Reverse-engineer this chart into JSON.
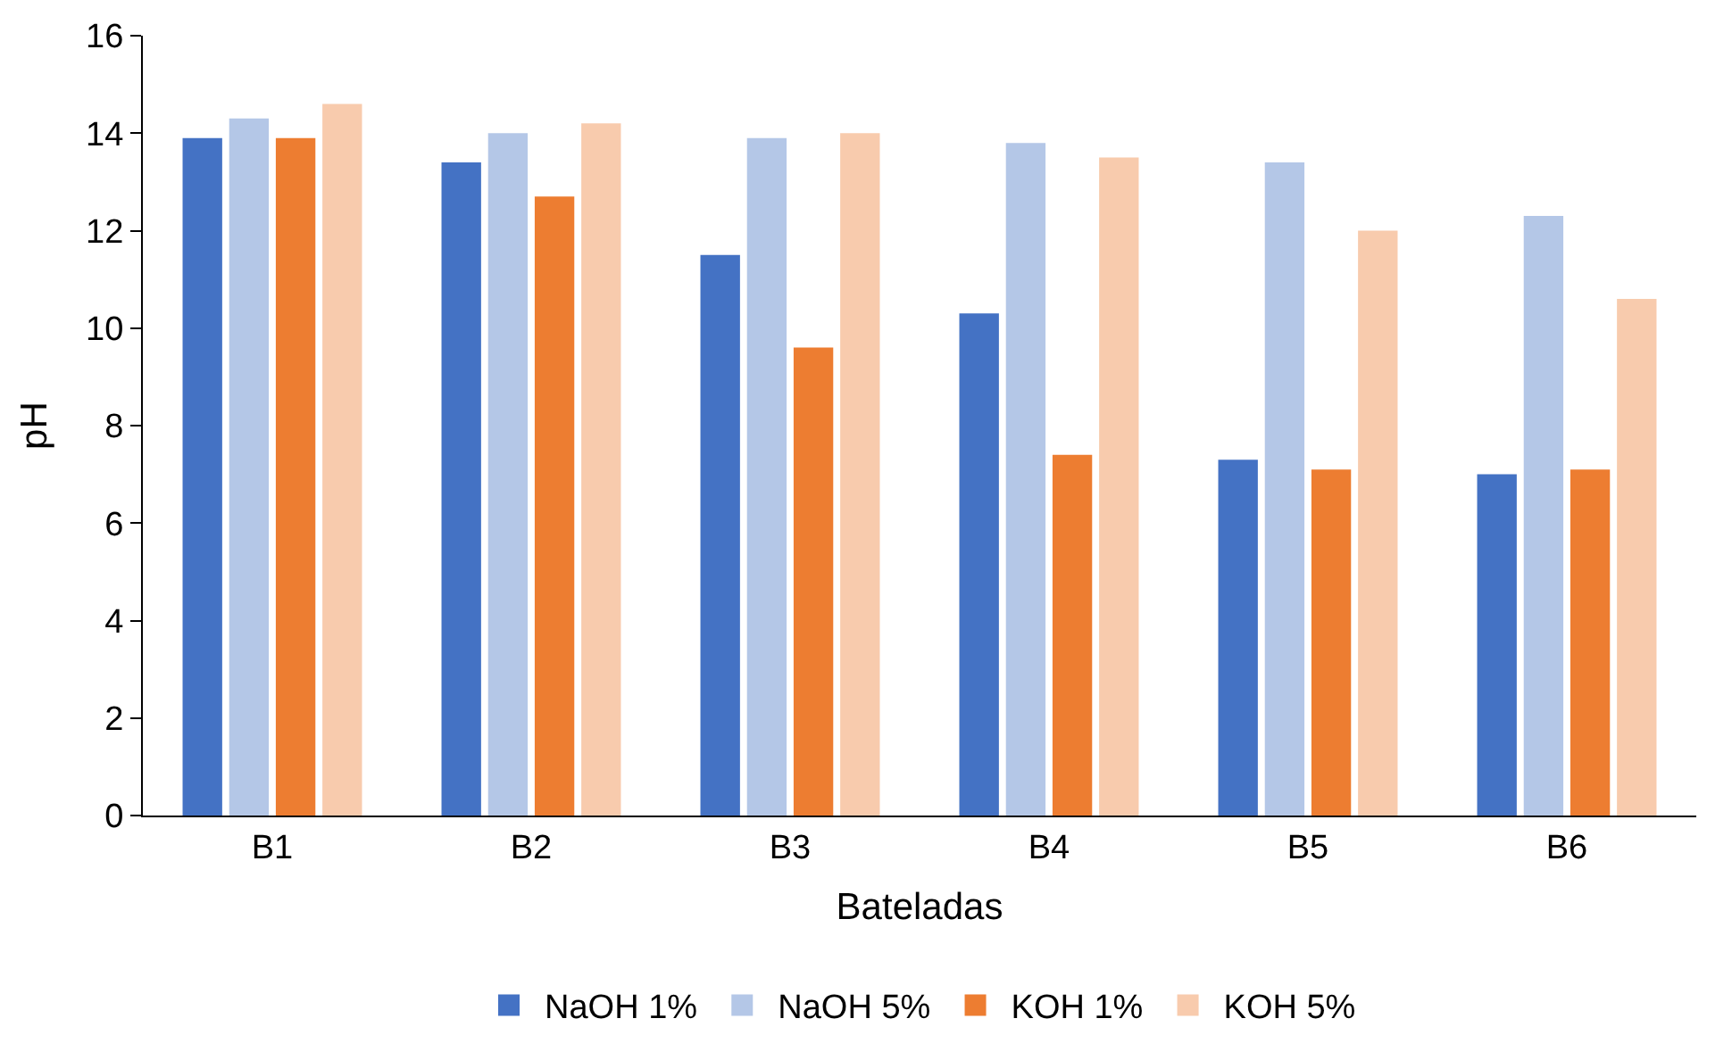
{
  "chart_data": {
    "type": "bar",
    "xlabel": "Bateladas",
    "ylabel": "pH",
    "categories": [
      "B1",
      "B2",
      "B3",
      "B4",
      "B5",
      "B6"
    ],
    "series": [
      {
        "name": "NaOH 1%",
        "color": "#4472c4",
        "values": [
          13.9,
          13.4,
          11.5,
          10.3,
          7.3,
          7.0
        ]
      },
      {
        "name": "NaOH 5%",
        "color": "#b4c7e7",
        "values": [
          14.3,
          14.0,
          13.9,
          13.8,
          13.4,
          12.3
        ]
      },
      {
        "name": "KOH 1%",
        "color": "#ed7d31",
        "values": [
          13.9,
          12.7,
          9.6,
          7.4,
          7.1,
          7.1
        ]
      },
      {
        "name": "KOH 5%",
        "color": "#f8cbad",
        "values": [
          14.6,
          14.2,
          14.0,
          13.5,
          12.0,
          10.6
        ]
      }
    ],
    "ylim": [
      0,
      16
    ],
    "yticks": [
      0,
      2,
      4,
      6,
      8,
      10,
      12,
      14,
      16
    ],
    "grid": false,
    "legend": "bottom"
  }
}
